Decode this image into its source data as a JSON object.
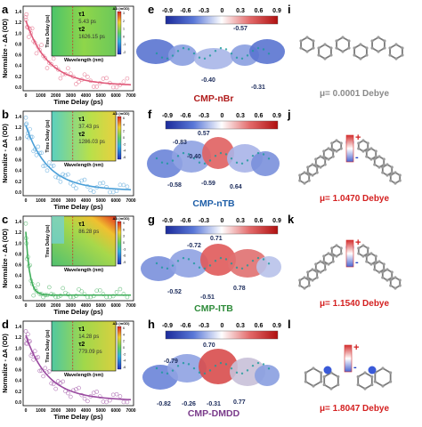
{
  "panels": {
    "a": "a",
    "b": "b",
    "c": "c",
    "d": "d",
    "e": "e",
    "f": "f",
    "g": "g",
    "h": "h",
    "i": "i",
    "j": "j",
    "k": "k",
    "l": "l"
  },
  "decay_axes": {
    "ylabel": "Normalize - ΔA (OD)",
    "xlabel": "Time Delay (ps)",
    "y_ticks": [
      "0.0",
      "0.2",
      "0.4",
      "0.6",
      "0.8",
      "1.0",
      "1.2",
      "1.4"
    ],
    "x_ticks": [
      "0",
      "1000",
      "2000",
      "3000",
      "4000",
      "5000",
      "6000",
      "7000"
    ]
  },
  "insets": {
    "ylabel": "Time Delay (ps)",
    "xlabel": "Wavelength (nm)",
    "y_ticks": [
      "1000",
      "100",
      "10",
      "1"
    ],
    "x_ticks": [
      "440",
      "480",
      "520",
      "560",
      "600",
      "640",
      "680",
      "720",
      "760",
      "800"
    ],
    "colorbar_title": "ΔA (mOD)"
  },
  "decays": [
    {
      "id": "a",
      "color": "#e05a7a",
      "tau1": "5.43 ps",
      "tau2": "1626.15 ps",
      "cbar": [
        "3",
        "2",
        "1",
        "0",
        "-1",
        "-2"
      ]
    },
    {
      "id": "b",
      "color": "#4a9fd8",
      "tau1": "37.43 ps",
      "tau2": "1286.03 ps",
      "cbar": [
        "6",
        "4",
        "2",
        "0",
        "-2",
        "-4",
        "-6"
      ]
    },
    {
      "id": "c",
      "color": "#3fae5a",
      "tau1": "86.28 ps",
      "tau2": "",
      "cbar": [
        "9",
        "6",
        "3",
        "0",
        "-3",
        "-6",
        "-9"
      ]
    },
    {
      "id": "d",
      "color": "#9a4aa0",
      "tau1": "14.28 ps",
      "tau2": "779.09 ps",
      "cbar": [
        "6",
        "4",
        "2",
        "0",
        "-2",
        "-4",
        "-6"
      ]
    }
  ],
  "tau_labels": {
    "tau1": "τ1",
    "tau2": "τ2"
  },
  "esp": {
    "colorbar_ticks": [
      "-0.9",
      "-0.6",
      "-0.3",
      "0",
      "0.3",
      "0.6",
      "0.9"
    ],
    "colors": {
      "neg": "#2b3fbf",
      "mid": "#ffffff",
      "pos": "#d42020"
    },
    "maps": [
      {
        "id": "e",
        "name": "CMP-nBr",
        "name_color": "#b01c1c",
        "values": [
          "-0.57",
          "-0.40",
          "-0.31"
        ]
      },
      {
        "id": "f",
        "name": "CMP-nTB",
        "name_color": "#1f5fa8",
        "values": [
          "0.57",
          "-0.83",
          "-0.40",
          "-0.58",
          "-0.59",
          "0.64"
        ]
      },
      {
        "id": "g",
        "name": "CMP-ITB",
        "name_color": "#2e8b3a",
        "values": [
          "-0.72",
          "0.71",
          "-0.52",
          "-0.51",
          "0.78"
        ]
      },
      {
        "id": "h",
        "name": "CMP-DMDD",
        "name_color": "#7a3a8a",
        "values": [
          "-0.79",
          "0.70",
          "-0.82",
          "-0.26",
          "-0.31",
          "0.77"
        ]
      }
    ]
  },
  "dipoles": [
    {
      "id": "i",
      "text": "μ= 0.0001 Debye",
      "color": "#8a8a8a"
    },
    {
      "id": "j",
      "text": "μ= 1.0470 Debye",
      "color": "#d42020"
    },
    {
      "id": "k",
      "text": "μ= 1.1540 Debye",
      "color": "#d42020"
    },
    {
      "id": "l",
      "text": "μ= 1.8047 Debye",
      "color": "#d42020"
    }
  ],
  "charge_signs": {
    "plus": "+",
    "minus": "-"
  }
}
